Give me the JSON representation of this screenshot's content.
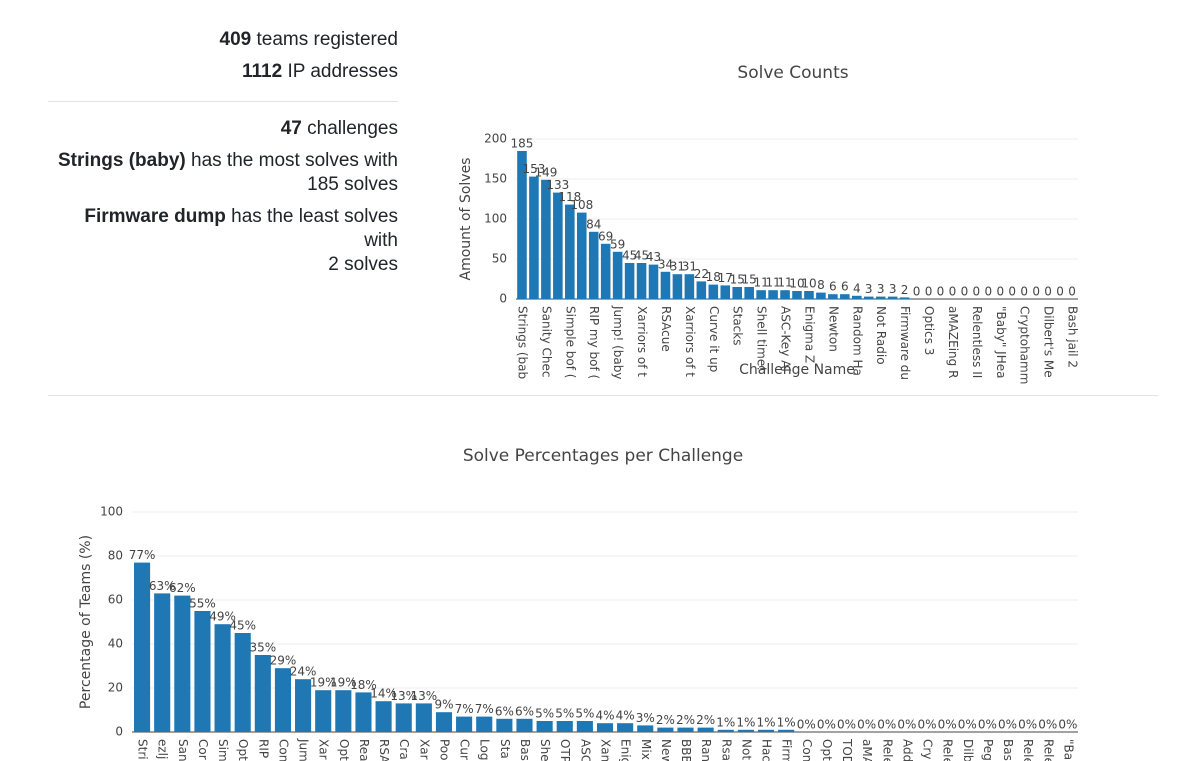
{
  "stats": {
    "teams_count": 409,
    "teams_label": "teams registered",
    "ip_count": 1112,
    "ip_label": "IP addresses",
    "challenges_count": 47,
    "challenges_label": "challenges",
    "most_name": "Strings (baby)",
    "most_text": "has the most solves with",
    "most_solves": "185 solves",
    "least_name": "Firmware dump",
    "least_text": "has the least solves with",
    "least_solves": "2 solves"
  },
  "chart_data": [
    {
      "type": "bar",
      "title": "Solve Counts",
      "x_label": "Challenge Name",
      "y_label": "Amount of Solves",
      "color": "#1f77b4",
      "grid": true,
      "categories": [
        "Strings (bab",
        null,
        "Sanity Chec",
        null,
        "Simple bof (",
        null,
        "RIP my bof (",
        null,
        "Jump! (baby",
        null,
        "Xarriors of t",
        null,
        "RSAcue",
        null,
        "Xarriors of t",
        null,
        "Curve it up",
        null,
        "Stacks",
        null,
        "Shell time!",
        null,
        "ASC-Key Al",
        null,
        "Enigma Z",
        null,
        "Newton",
        null,
        "Random Ha",
        null,
        "Not Radio",
        null,
        "Firmware du",
        null,
        "Optics 3",
        null,
        "aMAZEing R",
        null,
        "Relentless II",
        null,
        "\"Baby\" JHea",
        null,
        "Cryptohamm",
        null,
        "Dilbert's Me",
        null,
        "Bash jail 2"
      ],
      "values": [
        185,
        153,
        149,
        133,
        118,
        108,
        84,
        69,
        59,
        45,
        45,
        43,
        34,
        31,
        31,
        22,
        18,
        17,
        15,
        15,
        11,
        11,
        11,
        10,
        10,
        8,
        6,
        6,
        4,
        3,
        3,
        3,
        2,
        0,
        0,
        0,
        0,
        0,
        0,
        0,
        0,
        0,
        0,
        0,
        0,
        0,
        0
      ],
      "ylim": [
        0,
        200
      ],
      "yticks": [
        0,
        50,
        100,
        150,
        200
      ]
    },
    {
      "type": "bar",
      "title": "Solve Percentages per Challenge",
      "y_label": "Percentage of Teams (%)",
      "color": "#1f77b4",
      "grid": true,
      "categories": [
        "Stri",
        "ezlj",
        "San",
        "Cor",
        "Sim",
        "Opt",
        "RIP",
        "Con",
        "Jum",
        "Xar",
        "Opt",
        "Rea",
        "RSA",
        "Cra",
        "Xar",
        "Poo",
        "Cur",
        "Log",
        "Sta",
        "Bas",
        "She",
        "OTP",
        "ASC",
        "Xan",
        "Enig",
        "Mix",
        "New",
        "BBB",
        "Ran",
        "Rsa",
        "Not",
        "Hac",
        "Firm",
        "Con",
        "Opt",
        "TOD",
        "aMA",
        "Rele",
        "Add",
        "Cry",
        "Rele",
        "Dilb",
        "Peg",
        "Bas",
        "Rele",
        "Rele",
        "\"Ba"
      ],
      "values": [
        77,
        63,
        62,
        55,
        49,
        45,
        35,
        29,
        24,
        19,
        19,
        18,
        14,
        13,
        13,
        9,
        7,
        7,
        6,
        6,
        5,
        5,
        5,
        4,
        4,
        3,
        2,
        2,
        2,
        1,
        1,
        1,
        1,
        0,
        0,
        0,
        0,
        0,
        0,
        0,
        0,
        0,
        0,
        0,
        0,
        0,
        0
      ],
      "value_labels": [
        "77%",
        "63%",
        "62%",
        "55%",
        "49%",
        "45%",
        "35%",
        "29%",
        "24%",
        "19%",
        "19%",
        "18%",
        "14%",
        "13%",
        "13%",
        "9%",
        "7%",
        "7%",
        "6%",
        "6%",
        "5%",
        "5%",
        "5%",
        "4%",
        "4%",
        "3%",
        "2%",
        "2%",
        "2%",
        "1%",
        "1%",
        "1%",
        "1%",
        "0%",
        "0%",
        "0%",
        "0%",
        "0%",
        "0%",
        "0%",
        "0%",
        "0%",
        "0%",
        "0%",
        "0%",
        "0%",
        "0%"
      ],
      "ylim": [
        0,
        100
      ],
      "yticks": [
        0,
        20,
        40,
        60,
        80,
        100
      ]
    }
  ]
}
